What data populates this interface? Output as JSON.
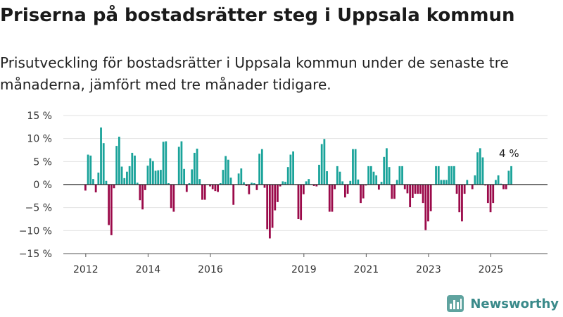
{
  "chart_data": {
    "type": "bar",
    "title": "Priserna på bostadsrätter steg i Uppsala kommun",
    "subtitle": "Prisutveckling för bostadsrätter i Uppsala kommun under de senaste tre månaderna, jämfört med tre månader tidigare.",
    "unit": "%",
    "x_start": "2012-01",
    "x_end": "2025-08",
    "ylim": [
      -15,
      15
    ],
    "yticks": [
      15,
      10,
      5,
      0,
      -5,
      -10,
      -15
    ],
    "ytick_labels": [
      "15 %",
      "10 %",
      "5 %",
      "0 %",
      "−5 %",
      "−10 %",
      "−15 %"
    ],
    "xticks": [
      "2012",
      "2014",
      "2016",
      "2019",
      "2021",
      "2023",
      "2025"
    ],
    "x_tick_positions": [
      "2012-01",
      "2014-01",
      "2016-01",
      "2019-01",
      "2021-01",
      "2023-01",
      "2025-01"
    ],
    "positive_color": "#1aa39a",
    "negative_color": "#9b0a4a",
    "grid": true,
    "annotation": {
      "text": "4 %",
      "at": "2025-08",
      "value": 4
    },
    "values": [
      -1.3,
      6.5,
      6.3,
      1.2,
      -1.7,
      2.6,
      12.4,
      9.0,
      0.8,
      -8.8,
      -11.0,
      -0.8,
      8.4,
      10.4,
      3.9,
      1.4,
      2.8,
      4.0,
      6.9,
      6.3,
      0.4,
      -3.4,
      -5.4,
      -1.2,
      4.1,
      5.7,
      5.1,
      3.0,
      3.1,
      3.2,
      9.3,
      9.4,
      0.3,
      -5.1,
      -5.9,
      0.1,
      8.2,
      9.4,
      3.4,
      -1.6,
      0.3,
      3.3,
      6.9,
      7.8,
      1.2,
      -3.3,
      -3.3,
      -0.1,
      -0.4,
      -1.0,
      -1.4,
      -1.6,
      0.3,
      3.2,
      6.2,
      5.4,
      1.5,
      -4.4,
      0.1,
      2.4,
      3.5,
      0.5,
      -0.3,
      -2.1,
      0.4,
      0.3,
      -1.2,
      6.7,
      7.7,
      -0.7,
      -9.7,
      -11.7,
      -9.4,
      -5.6,
      -3.8,
      -0.4,
      0.7,
      0.6,
      3.8,
      6.5,
      7.2,
      -0.1,
      -7.5,
      -7.7,
      -2.1,
      0.7,
      1.2,
      0.1,
      -0.3,
      -0.4,
      4.3,
      8.8,
      9.9,
      2.9,
      -5.9,
      -5.9,
      -1.0,
      4.0,
      2.8,
      0.7,
      -2.8,
      -2.0,
      0.8,
      7.7,
      7.7,
      1.1,
      -4.0,
      -3.0,
      -0.2,
      4.0,
      4.0,
      2.8,
      2.0,
      -1.1,
      0.6,
      6.0,
      7.9,
      3.8,
      -3.1,
      -3.1,
      1.0,
      4.0,
      4.0,
      -1.0,
      -1.9,
      -4.9,
      -2.9,
      -2.0,
      -2.0,
      -2.0,
      -4.0,
      -9.9,
      -8.0,
      -5.8,
      0.1,
      4.0,
      4.0,
      1.0,
      1.0,
      1.0,
      4.0,
      4.0,
      4.0,
      -2.0,
      -6.0,
      -8.0,
      -2.0,
      1.0,
      0.1,
      -1.0,
      2.0,
      7.0,
      7.9,
      5.9,
      -0.2,
      -4.0,
      -6.0,
      -4.0,
      1.0,
      2.0,
      0.2,
      -1.0,
      -1.0,
      3.0,
      4.0
    ]
  },
  "branding": {
    "name": "Newsworthy",
    "icon": "bar-chart-logo-icon",
    "color": "#3a8a8a"
  }
}
